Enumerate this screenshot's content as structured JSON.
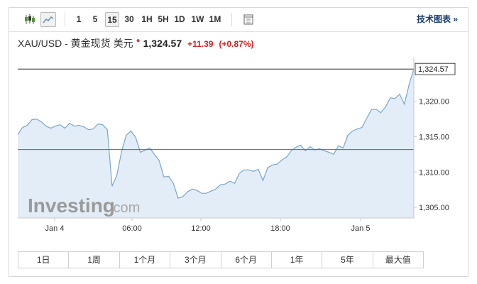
{
  "toolbar": {
    "timeframes": [
      "1",
      "5",
      "15",
      "30",
      "1H",
      "5H",
      "1D",
      "1W",
      "1M"
    ],
    "active_timeframe": "15",
    "tech_chart_link": "技术图表 »",
    "icons": [
      "candlestick-icon",
      "line-chart-icon",
      "calculator-icon"
    ]
  },
  "quote": {
    "symbol": "XAU/USD - 黄金现货 美元",
    "marker": "●",
    "price": "1,324.57",
    "change": "+11.39",
    "change_pct": "(+0.87%)"
  },
  "watermark": {
    "brand": "Investing",
    "suffix": ".com"
  },
  "periods": [
    "1日",
    "1周",
    "1个月",
    "3个月",
    "6个月",
    "1年",
    "5年",
    "最大值"
  ],
  "colors": {
    "line": "#7aa5cc",
    "area": "#e3edf7",
    "prev_close_line": "#c23a3a",
    "last_price_line": "#222222",
    "up": "#d42020",
    "link": "#1a3e6e"
  },
  "chart_data": {
    "type": "area",
    "x_tick_labels": [
      "Jan 4",
      "06:00",
      "12:00",
      "18:00",
      "Jan 5"
    ],
    "y_tick_labels": [
      "1,320.00",
      "1,315.00",
      "1,310.00",
      "1,305.00"
    ],
    "y_ticks": [
      1320,
      1315,
      1310,
      1305
    ],
    "ylim": [
      1303.5,
      1325.8
    ],
    "last_price_label": "1,324.57",
    "last_price": 1324.57,
    "prev_close": 1313.18,
    "grid": false,
    "values": [
      1315.3,
      1316.3,
      1316.6,
      1317.4,
      1317.5,
      1317.1,
      1316.5,
      1316.2,
      1316.5,
      1316.7,
      1316.2,
      1316.9,
      1316.5,
      1316.6,
      1316.4,
      1316.0,
      1316.1,
      1316.8,
      1316.7,
      1316.0,
      1308.0,
      1309.5,
      1312.8,
      1315.2,
      1315.8,
      1314.9,
      1312.8,
      1313.1,
      1313.4,
      1312.5,
      1311.6,
      1309.3,
      1309.4,
      1308.4,
      1306.3,
      1306.5,
      1307.2,
      1307.6,
      1307.4,
      1307.0,
      1307.0,
      1307.3,
      1307.6,
      1308.2,
      1308.3,
      1308.7,
      1308.4,
      1309.8,
      1310.3,
      1310.3,
      1310.1,
      1310.4,
      1308.8,
      1310.6,
      1311.0,
      1311.1,
      1311.7,
      1312.1,
      1313.0,
      1313.5,
      1313.8,
      1313.0,
      1313.6,
      1313.1,
      1313.3,
      1313.0,
      1312.8,
      1312.5,
      1313.7,
      1313.4,
      1315.2,
      1315.8,
      1316.1,
      1316.3,
      1317.6,
      1318.8,
      1318.9,
      1318.4,
      1319.2,
      1320.5,
      1320.4,
      1321.0,
      1319.6,
      1322.4,
      1324.57
    ]
  }
}
